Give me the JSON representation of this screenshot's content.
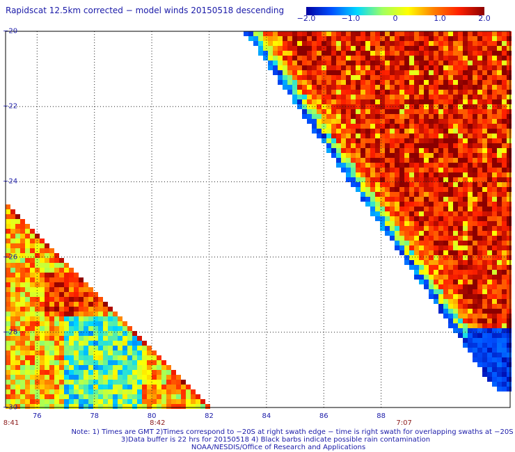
{
  "title": "Rapidscat 12.5km corrected − model winds 20150518 descending",
  "colorbar": {
    "ticks": [
      "−2.0",
      "−1.0",
      "0",
      "1.0",
      "2.0"
    ],
    "tick_values": [
      -2.0,
      -1.0,
      0,
      1.0,
      2.0
    ],
    "colors": [
      "#0000a0",
      "#0050ff",
      "#00d8ff",
      "#a0ff60",
      "#ffff00",
      "#ff8000",
      "#ff2000",
      "#8b0000"
    ]
  },
  "axes": {
    "lat_labels": [
      "−20",
      "−22",
      "−24",
      "−26",
      "−28",
      "−30"
    ],
    "lat_values": [
      -20,
      -22,
      -24,
      -26,
      -28,
      -30
    ],
    "lon_labels": [
      "76",
      "78",
      "80",
      "82",
      "84",
      "86",
      "88"
    ],
    "lon_values": [
      76,
      78,
      80,
      82,
      84,
      86,
      88
    ],
    "lon_range": [
      74.9,
      92.5
    ],
    "lat_range": [
      -30,
      -20
    ]
  },
  "times": [
    {
      "label": "8:41",
      "lon": 75.0
    },
    {
      "label": "8:42",
      "lon": 80.2
    },
    {
      "label": "7:07",
      "lon": 88.8
    }
  ],
  "notes": {
    "line1": "Note: 1) Times are GMT 2)Times correspond to −20S at right swath edge − time is right swath for overlapping swaths at −20S",
    "line2": "3)Data buffer is 22 hrs for 20150518 4) Black barbs indicate possible rain contamination",
    "line3": "NOAA/NESDIS/Office of Research and Applications"
  }
}
